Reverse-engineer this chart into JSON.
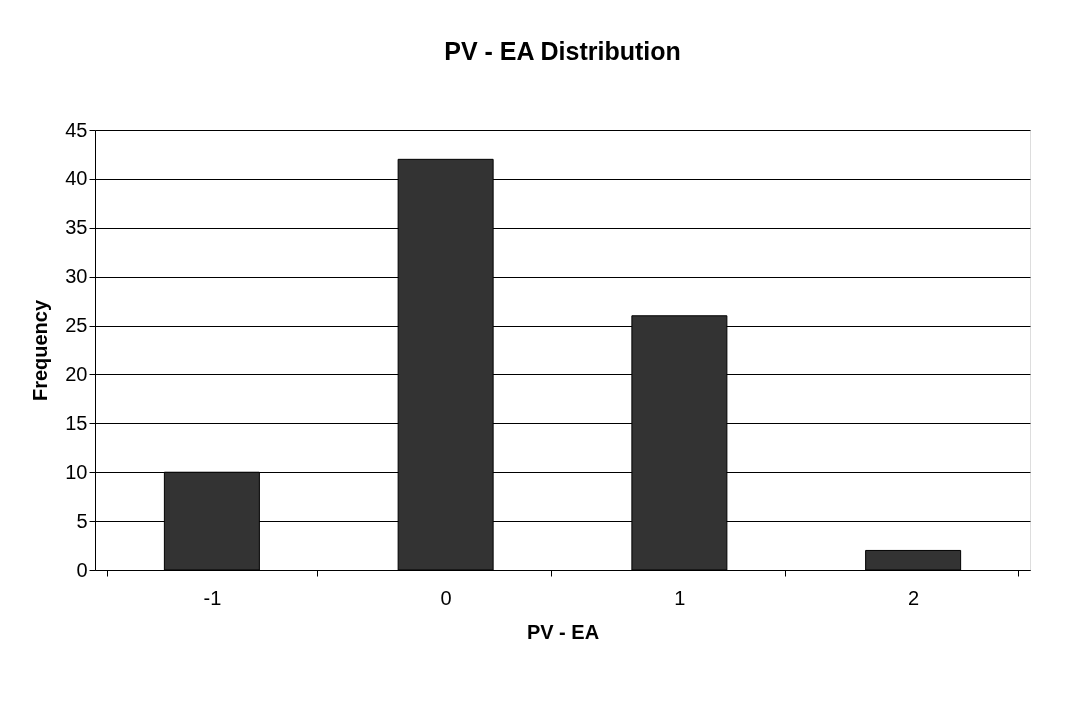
{
  "chart_data": {
    "type": "bar",
    "title": "PV - EA Distribution",
    "xlabel": "PV - EA",
    "ylabel": "Frequency",
    "categories": [
      "-1",
      "0",
      "1",
      "2"
    ],
    "values": [
      10,
      42,
      26,
      2
    ],
    "color": "#333333",
    "ylim": [
      0,
      45
    ],
    "yticks": [
      0,
      5,
      10,
      15,
      20,
      25,
      30,
      35,
      40,
      45
    ],
    "grid": "y"
  }
}
